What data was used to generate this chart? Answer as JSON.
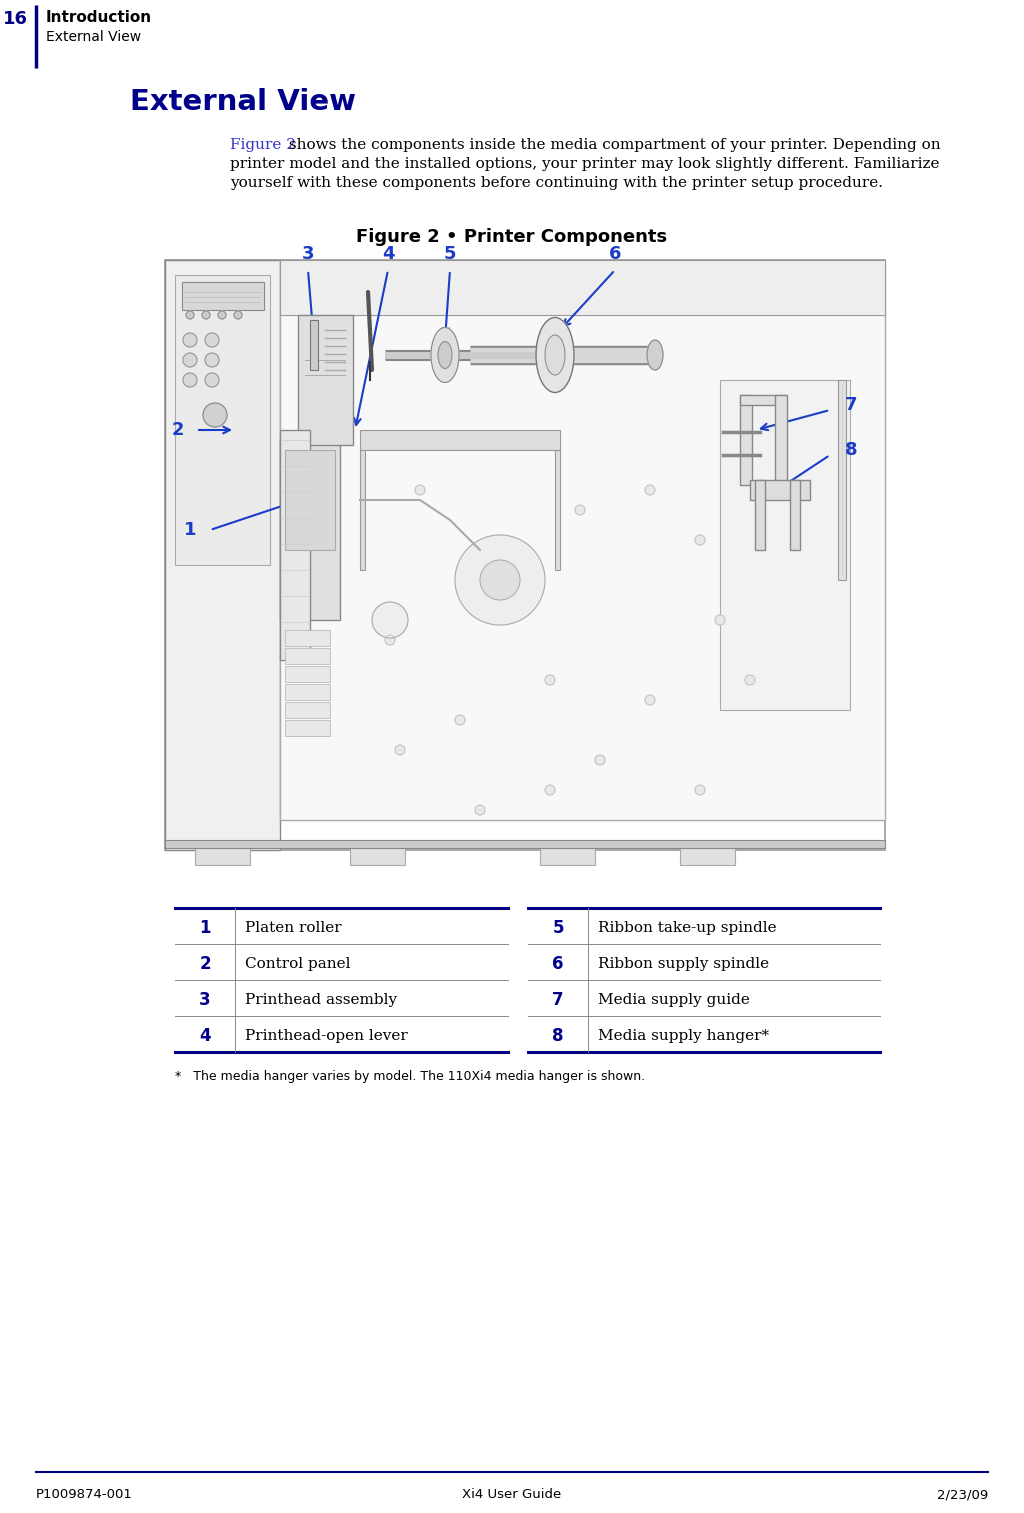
{
  "page_number": "16",
  "header_chapter": "Introduction",
  "header_section": "External View",
  "section_title": "External View",
  "body_text_blue": "Figure 2",
  "body_text_rest": " shows the components inside the media compartment of your printer. Depending on\nprinter model and the installed options, your printer may look slightly different. Familiarize\nyourself with these components before continuing with the printer setup procedure.",
  "figure_caption": "Figure 2 • Printer Components",
  "table_items_left": [
    {
      "num": "1",
      "label": "Platen roller"
    },
    {
      "num": "2",
      "label": "Control panel"
    },
    {
      "num": "3",
      "label": "Printhead assembly"
    },
    {
      "num": "4",
      "label": "Printhead-open lever"
    }
  ],
  "table_items_right": [
    {
      "num": "5",
      "label": "Ribbon take-up spindle"
    },
    {
      "num": "6",
      "label": "Ribbon supply spindle"
    },
    {
      "num": "7",
      "label": "Media supply guide"
    },
    {
      "num": "8",
      "label": "Media supply hanger*"
    }
  ],
  "footnote": "*   The media hanger varies by model. The 110Xi4 media hanger is shown.",
  "footer_left": "P1009874-001",
  "footer_center": "Xi4 User Guide",
  "footer_right": "2/23/09",
  "dark_blue": "#00008B",
  "navy": "#000080",
  "callout_blue": "#1a3cc8",
  "link_blue": "#3333cc",
  "text_color": "#000000",
  "bg_color": "#ffffff",
  "line_gray": "#aaaaaa",
  "med_gray": "#888888",
  "light_gray": "#cccccc",
  "fill_light": "#f5f5f5",
  "fill_mid": "#e8e8e8"
}
